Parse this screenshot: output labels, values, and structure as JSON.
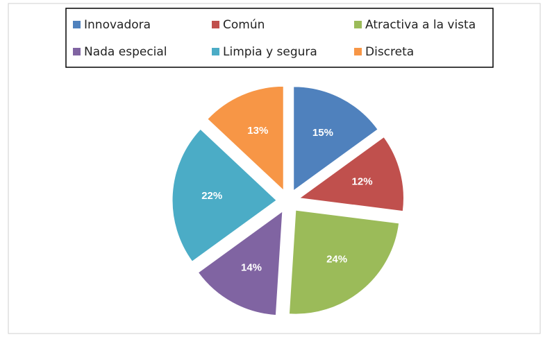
{
  "chart_data": {
    "type": "pie",
    "categories": [
      "Innovadora",
      "Común",
      "Atractiva a la vista",
      "Nada especial",
      "Limpia y segura",
      "Discreta"
    ],
    "values": [
      15,
      12,
      24,
      14,
      22,
      13
    ],
    "value_labels": [
      "15%",
      "12%",
      "24%",
      "14%",
      "22%",
      "13%"
    ],
    "colors": [
      "#4f81bd",
      "#c0504d",
      "#9bbb59",
      "#8064a2",
      "#4bacc6",
      "#f79646"
    ],
    "legend": "top"
  }
}
